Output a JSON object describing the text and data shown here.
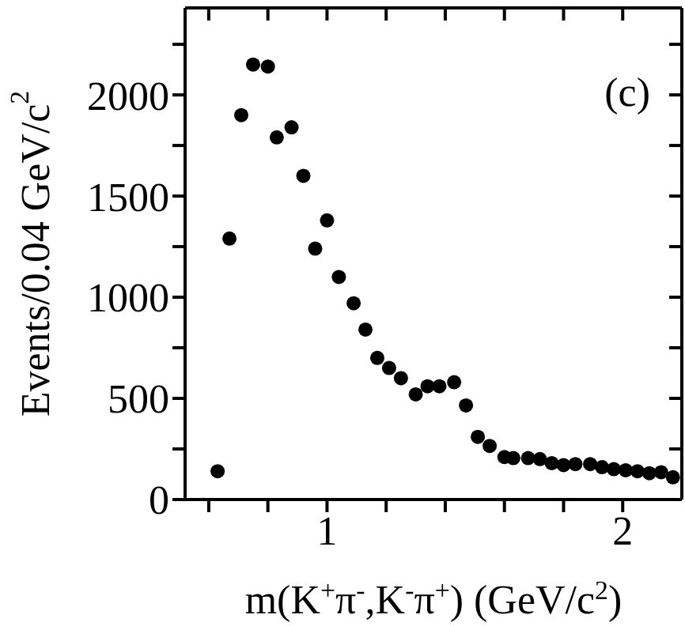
{
  "chart_data": {
    "type": "scatter",
    "xlabel": "m(K$^{+}$π$^{-}$,K$^{-}$π$^{+}$) (GeV/c$^{2}$)",
    "ylabel": "Events/0.04 GeV/c$^{2}$",
    "annotations": [
      "(c)"
    ],
    "x": [
      0.63,
      0.67,
      0.71,
      0.75,
      0.8,
      0.83,
      0.88,
      0.92,
      0.96,
      1.0,
      1.04,
      1.09,
      1.13,
      1.17,
      1.21,
      1.25,
      1.3,
      1.34,
      1.38,
      1.43,
      1.47,
      1.51,
      1.55,
      1.6,
      1.63,
      1.68,
      1.72,
      1.76,
      1.8,
      1.84,
      1.89,
      1.93,
      1.97,
      2.01,
      2.05,
      2.09,
      2.13,
      2.17
    ],
    "series": [
      {
        "color": "#000000",
        "values": [
          140,
          1290,
          1900,
          2150,
          2140,
          1790,
          1840,
          1600,
          1240,
          1380,
          1100,
          970,
          840,
          700,
          650,
          600,
          520,
          560,
          560,
          580,
          465,
          310,
          265,
          210,
          205,
          205,
          200,
          180,
          170,
          175,
          175,
          160,
          150,
          145,
          140,
          130,
          135,
          110
        ]
      }
    ],
    "xlim": [
      0.52,
      2.2
    ],
    "xticks": [
      {
        "value": 0.6,
        "label": null
      },
      {
        "value": 0.8,
        "label": null
      },
      1,
      {
        "value": 1.2,
        "label": null
      },
      {
        "value": 1.4,
        "label": null
      },
      {
        "value": 1.6,
        "label": null
      },
      {
        "value": 1.8,
        "label": null
      },
      2
    ],
    "ylim": [
      0,
      2430
    ],
    "yticks": [
      0,
      {
        "value": 250,
        "label": null
      },
      500,
      {
        "value": 750,
        "label": null
      },
      1000,
      {
        "value": 1250,
        "label": null
      },
      1500,
      {
        "value": 1750,
        "label": null
      },
      2000,
      {
        "value": 2250,
        "label": null
      }
    ],
    "marker": "circle"
  }
}
